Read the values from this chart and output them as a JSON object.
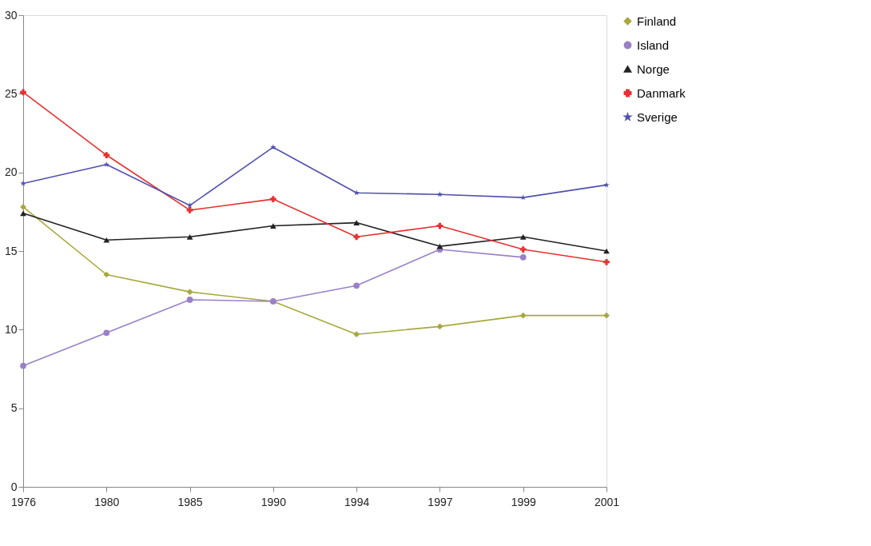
{
  "chart_data": {
    "type": "line",
    "categories": [
      "1976",
      "1980",
      "1985",
      "1990",
      "1994",
      "1997",
      "1999",
      "2001"
    ],
    "series": [
      {
        "name": "Finland",
        "color": "#a8a83c",
        "marker": "diamond",
        "values": [
          17.8,
          13.5,
          12.4,
          11.8,
          9.7,
          10.2,
          10.9,
          10.9
        ]
      },
      {
        "name": "Island",
        "color": "#9a80c8",
        "marker": "circle",
        "values": [
          7.7,
          9.8,
          11.9,
          11.8,
          12.8,
          15.1,
          14.6,
          null
        ]
      },
      {
        "name": "Norge",
        "color": "#222222",
        "marker": "triangle",
        "values": [
          17.4,
          15.7,
          15.9,
          16.6,
          16.8,
          15.3,
          15.9,
          15.0
        ]
      },
      {
        "name": "Danmark",
        "color": "#e83030",
        "marker": "cross",
        "values": [
          25.1,
          21.1,
          17.6,
          18.3,
          15.9,
          16.6,
          15.1,
          14.3
        ]
      },
      {
        "name": "Sverige",
        "color": "#5050b0",
        "marker": "star",
        "values": [
          19.3,
          20.5,
          17.9,
          21.6,
          18.7,
          18.6,
          18.4,
          19.2
        ]
      }
    ],
    "ylim": [
      0,
      30
    ],
    "yticks": [
      0,
      5,
      10,
      15,
      20,
      25,
      30
    ],
    "grid": false,
    "legend": "right"
  }
}
